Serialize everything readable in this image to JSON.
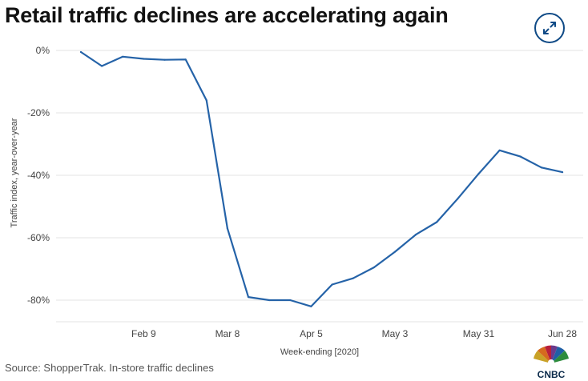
{
  "header": {
    "title": "Retail traffic declines are accelerating again",
    "expand_icon": "expand-arrows-icon"
  },
  "footer": {
    "source": "Source: ShopperTrak. In-store traffic declines",
    "logo_text": "CNBC",
    "logo_icon": "nbc-peacock-logo"
  },
  "colors": {
    "line": "#2563a8",
    "grid": "#e3e3e3",
    "button_border": "#0f4a86"
  },
  "chart_data": {
    "type": "line",
    "title": "Retail traffic declines are accelerating again",
    "xlabel": "Week-ending [2020]",
    "ylabel": "Traffic index, year-over-year",
    "ylim": [
      -85,
      0
    ],
    "yticks": [
      0,
      -20,
      -40,
      -60,
      -80
    ],
    "ytick_labels": [
      "0%",
      "-20%",
      "-40%",
      "-60%",
      "-80%"
    ],
    "xtick_labels": [
      "Feb 9",
      "Mar 8",
      "Apr 5",
      "May 3",
      "May 31",
      "Jun 28"
    ],
    "xtick_index": [
      3,
      7,
      11,
      15,
      19,
      23
    ],
    "grid": true,
    "legend": "none",
    "series": [
      {
        "x": [
          "Jan 19",
          "Jan 26",
          "Feb 2",
          "Feb 9",
          "Feb 16",
          "Feb 23",
          "Mar 1",
          "Mar 8",
          "Mar 15",
          "Mar 22",
          "Mar 29",
          "Apr 5",
          "Apr 12",
          "Apr 19",
          "Apr 26",
          "May 3",
          "May 10",
          "May 17",
          "May 24",
          "May 31",
          "Jun 7",
          "Jun 14",
          "Jun 21",
          "Jun 28"
        ],
        "values": [
          -0.5,
          -5,
          -2,
          -2.7,
          -3,
          -2.9,
          -16,
          -57,
          -79,
          -80,
          -80,
          -82,
          -75,
          -73,
          -69.5,
          -64.5,
          -59,
          -55,
          -47.5,
          -39.5,
          -32,
          -34,
          -37.5,
          -39
        ]
      }
    ]
  }
}
